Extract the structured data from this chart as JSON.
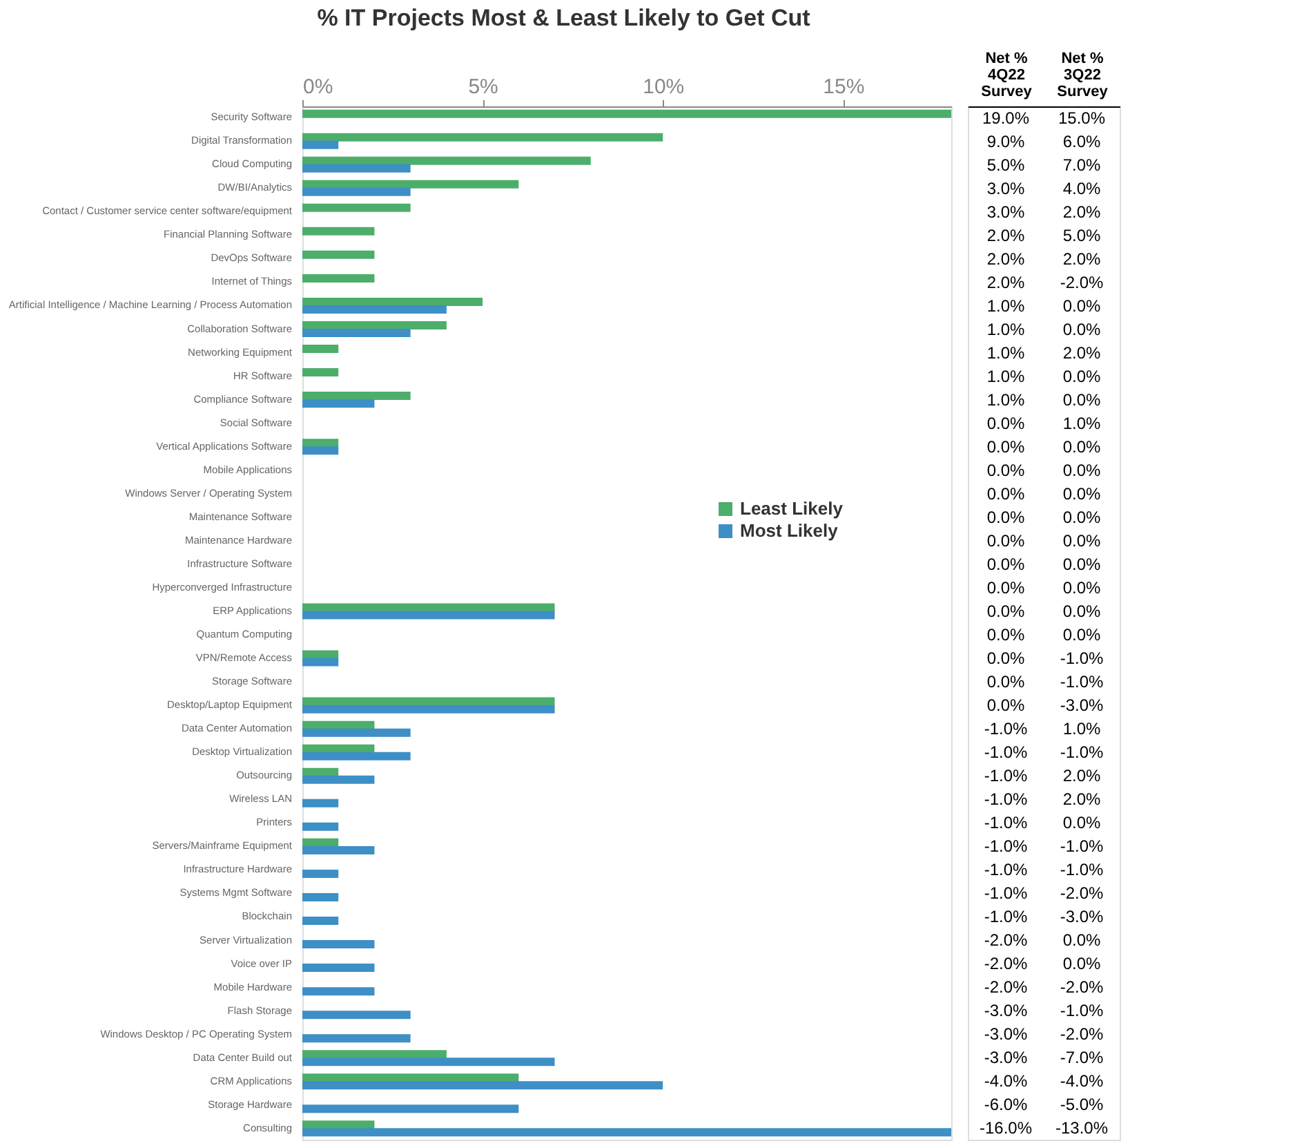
{
  "chart_data": [
    {
      "type": "bar",
      "orientation": "horizontal",
      "title": "% IT Projects Most & Least Likely to Get Cut",
      "categories": [
        "Security Software",
        "Digital Transformation",
        "Cloud Computing",
        "DW/BI/Analytics",
        "Contact / Customer service center software/equipment",
        "Financial Planning Software",
        "DevOps Software",
        "Internet of Things",
        "Artificial Intelligence / Machine Learning / Process Automation",
        "Collaboration Software",
        "Networking Equipment",
        "HR Software",
        "Compliance Software",
        "Social Software",
        "Vertical Applications Software",
        "Mobile Applications",
        "Windows Server / Operating System",
        "Maintenance Software",
        "Maintenance Hardware",
        "Infrastructure Software",
        "Hyperconverged Infrastructure",
        "ERP Applications",
        "Quantum Computing",
        "VPN/Remote Access",
        "Storage Software",
        "Desktop/Laptop Equipment",
        "Data Center Automation",
        "Desktop Virtualization",
        "Outsourcing",
        "Wireless LAN",
        "Printers",
        "Servers/Mainframe Equipment",
        "Infrastructure Hardware",
        "Systems Mgmt Software",
        "Blockchain",
        "Server Virtualization",
        "Voice over IP",
        "Mobile Hardware",
        "Flash Storage",
        "Windows Desktop / PC Operating System",
        "Data Center Build out",
        "CRM Applications",
        "Storage Hardware",
        "Consulting"
      ],
      "series": [
        {
          "name": "Least Likely",
          "color": "#4cae6a",
          "values": [
            18,
            10,
            8,
            6,
            3,
            2,
            2,
            2,
            5,
            4,
            1,
            1,
            3,
            0,
            1,
            0,
            0,
            0,
            0,
            0,
            0,
            7,
            0,
            1,
            0,
            7,
            2,
            2,
            1,
            0,
            0,
            1,
            0,
            0,
            0,
            0,
            0,
            0,
            0,
            0,
            4,
            6,
            0,
            2
          ]
        },
        {
          "name": "Most Likely",
          "color": "#3d8fc6",
          "values": [
            0,
            1,
            3,
            3,
            0,
            0,
            0,
            0,
            4,
            3,
            0,
            0,
            2,
            0,
            1,
            0,
            0,
            0,
            0,
            0,
            0,
            7,
            0,
            1,
            0,
            7,
            3,
            3,
            2,
            1,
            1,
            2,
            1,
            1,
            1,
            2,
            2,
            2,
            3,
            3,
            7,
            10,
            6,
            18
          ]
        }
      ],
      "xlim": [
        0,
        18
      ],
      "xticks": [
        {
          "value": 0,
          "label": "0%"
        },
        {
          "value": 5,
          "label": "5%"
        },
        {
          "value": 10,
          "label": "10%"
        },
        {
          "value": 15,
          "label": "15%"
        }
      ],
      "grid": false,
      "legend": "right"
    },
    {
      "type": "other",
      "categories": [
        "Net %\n4Q22\nSurvey",
        "Net %\n3Q22\nSurvey"
      ],
      "cell_labels": [
        [
          "19.0%",
          "15.0%"
        ],
        [
          "9.0%",
          "6.0%"
        ],
        [
          "5.0%",
          "7.0%"
        ],
        [
          "3.0%",
          "4.0%"
        ],
        [
          "3.0%",
          "2.0%"
        ],
        [
          "2.0%",
          "5.0%"
        ],
        [
          "2.0%",
          "2.0%"
        ],
        [
          "2.0%",
          "-2.0%"
        ],
        [
          "1.0%",
          "0.0%"
        ],
        [
          "1.0%",
          "0.0%"
        ],
        [
          "1.0%",
          "2.0%"
        ],
        [
          "1.0%",
          "0.0%"
        ],
        [
          "1.0%",
          "0.0%"
        ],
        [
          "0.0%",
          "1.0%"
        ],
        [
          "0.0%",
          "0.0%"
        ],
        [
          "0.0%",
          "0.0%"
        ],
        [
          "0.0%",
          "0.0%"
        ],
        [
          "0.0%",
          "0.0%"
        ],
        [
          "0.0%",
          "0.0%"
        ],
        [
          "0.0%",
          "0.0%"
        ],
        [
          "0.0%",
          "0.0%"
        ],
        [
          "0.0%",
          "0.0%"
        ],
        [
          "0.0%",
          "0.0%"
        ],
        [
          "0.0%",
          "-1.0%"
        ],
        [
          "0.0%",
          "-1.0%"
        ],
        [
          "0.0%",
          "-3.0%"
        ],
        [
          "-1.0%",
          "1.0%"
        ],
        [
          "-1.0%",
          "-1.0%"
        ],
        [
          "-1.0%",
          "2.0%"
        ],
        [
          "-1.0%",
          "2.0%"
        ],
        [
          "-1.0%",
          "0.0%"
        ],
        [
          "-1.0%",
          "-1.0%"
        ],
        [
          "-1.0%",
          "-1.0%"
        ],
        [
          "-1.0%",
          "-2.0%"
        ],
        [
          "-1.0%",
          "-3.0%"
        ],
        [
          "-2.0%",
          "0.0%"
        ],
        [
          "-2.0%",
          "0.0%"
        ],
        [
          "-2.0%",
          "-2.0%"
        ],
        [
          "-3.0%",
          "-1.0%"
        ],
        [
          "-3.0%",
          "-2.0%"
        ],
        [
          "-3.0%",
          "-7.0%"
        ],
        [
          "-4.0%",
          "-4.0%"
        ],
        [
          "-6.0%",
          "-5.0%"
        ],
        [
          "-16.0%",
          "-13.0%"
        ]
      ]
    }
  ]
}
